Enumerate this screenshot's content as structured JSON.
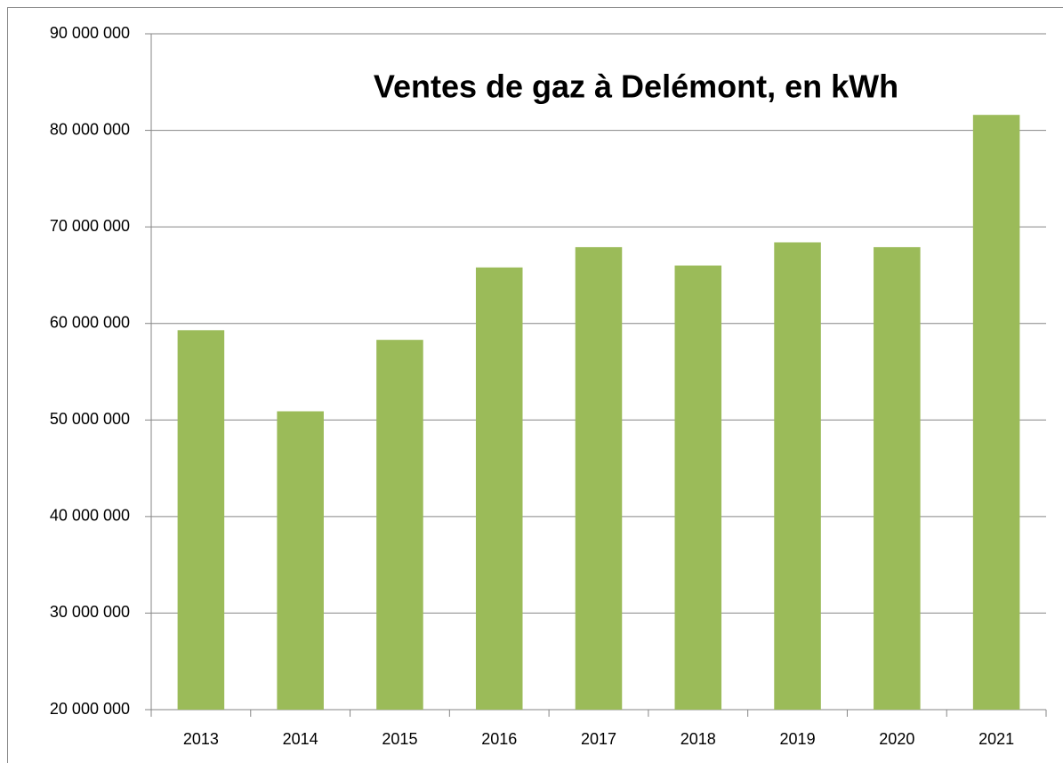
{
  "chart_data": {
    "type": "bar",
    "title": "Ventes de gaz à Delémont, en kWh",
    "categories": [
      "2013",
      "2014",
      "2015",
      "2016",
      "2017",
      "2018",
      "2019",
      "2020",
      "2021"
    ],
    "values": [
      59300000,
      50900000,
      58300000,
      65800000,
      67900000,
      66000000,
      68400000,
      67900000,
      81600000
    ],
    "color": "#9bbb59",
    "ylim": [
      20000000,
      90000000
    ],
    "yticks": [
      {
        "value": 20000000,
        "label": "20 000 000"
      },
      {
        "value": 30000000,
        "label": "30 000 000"
      },
      {
        "value": 40000000,
        "label": "40 000 000"
      },
      {
        "value": 50000000,
        "label": "50 000 000"
      },
      {
        "value": 60000000,
        "label": "60 000 000"
      },
      {
        "value": 70000000,
        "label": "70 000 000"
      },
      {
        "value": 80000000,
        "label": "80 000 000"
      },
      {
        "value": 90000000,
        "label": "90 000 000"
      }
    ],
    "grid": true
  }
}
